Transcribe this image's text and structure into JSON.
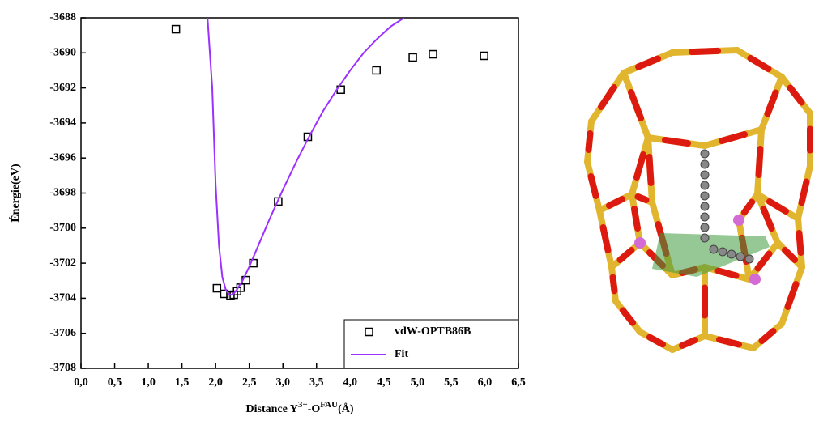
{
  "chart_data": {
    "type": "scatter",
    "ylabel": "Énergie(eV)",
    "xlabel_parts": [
      "Distance Y",
      "3+",
      "-O",
      "FAU",
      "(Å)"
    ],
    "xlim": [
      0,
      6.5
    ],
    "ylim": [
      -3708,
      -3688
    ],
    "xticks": [
      {
        "value": 0,
        "label": "0,0"
      },
      {
        "value": 0.5,
        "label": "0,5"
      },
      {
        "value": 1,
        "label": "1,0"
      },
      {
        "value": 1.5,
        "label": "1,5"
      },
      {
        "value": 2,
        "label": "2,0"
      },
      {
        "value": 2.5,
        "label": "2,5"
      },
      {
        "value": 3,
        "label": "3,0"
      },
      {
        "value": 3.5,
        "label": "3,5"
      },
      {
        "value": 4,
        "label": "4,0"
      },
      {
        "value": 4.5,
        "label": "4,5"
      },
      {
        "value": 5,
        "label": "5,0"
      },
      {
        "value": 5.5,
        "label": "5,5"
      },
      {
        "value": 6,
        "label": "6,0"
      },
      {
        "value": 6.5,
        "label": "6,5"
      }
    ],
    "yticks": [
      -3708,
      -3706,
      -3704,
      -3702,
      -3700,
      -3698,
      -3696,
      -3694,
      -3692,
      -3690,
      -3688
    ],
    "legend": "lower right",
    "series": [
      {
        "name": "vdW-OPTB86B",
        "mode": "markers",
        "color": "#000000",
        "x": [
          1.41,
          2.02,
          2.13,
          2.22,
          2.27,
          2.32,
          2.37,
          2.45,
          2.56,
          2.93,
          3.37,
          3.86,
          4.39,
          4.93,
          5.23,
          5.99
        ],
        "values": [
          -3688.65,
          -3703.43,
          -3703.75,
          -3703.85,
          -3703.8,
          -3703.6,
          -3703.4,
          -3702.97,
          -3702.0,
          -3698.48,
          -3694.79,
          -3692.1,
          -3691.0,
          -3690.26,
          -3690.08,
          -3690.17
        ]
      },
      {
        "name": "Fit",
        "mode": "line",
        "color": "#9b30ff",
        "x": [
          1.88,
          1.95,
          2.0,
          2.05,
          2.1,
          2.15,
          2.2,
          2.25,
          2.3,
          2.4,
          2.5,
          2.6,
          2.8,
          3.0,
          3.2,
          3.4,
          3.6,
          3.8,
          4.0,
          4.2,
          4.4,
          4.6,
          4.8
        ],
        "values": [
          -3688,
          -3692,
          -3697.5,
          -3701,
          -3702.8,
          -3703.5,
          -3703.8,
          -3703.8,
          -3703.6,
          -3703.0,
          -3702.2,
          -3701.3,
          -3699.5,
          -3697.8,
          -3696.2,
          -3694.7,
          -3693.3,
          -3692.1,
          -3691.0,
          -3690.0,
          -3689.2,
          -3688.5,
          -3688
        ]
      }
    ]
  }
}
